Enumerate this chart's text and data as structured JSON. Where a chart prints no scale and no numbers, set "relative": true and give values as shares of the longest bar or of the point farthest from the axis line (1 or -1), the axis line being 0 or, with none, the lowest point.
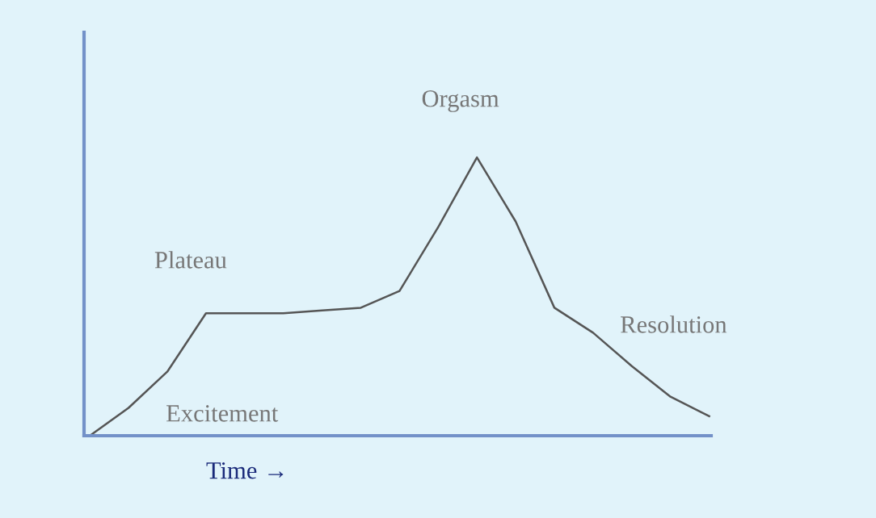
{
  "chart_data": {
    "type": "line",
    "relative": true,
    "xlabel": "Time →",
    "annotations": [
      "Plateau",
      "Orgasm",
      "Resolution",
      "Excitement"
    ],
    "categories": [
      null,
      null,
      null,
      null,
      null,
      null,
      null,
      null,
      null,
      null,
      null,
      null,
      null,
      null,
      null,
      null,
      null
    ],
    "series": [
      {
        "color": "#555555",
        "values": [
          0,
          0.1,
          0.23,
          0.44,
          0.44,
          0.44,
          0.45,
          0.46,
          0.52,
          0.75,
          1.0,
          0.77,
          0.46,
          0.37,
          0.25,
          0.14,
          0.07
        ]
      }
    ],
    "grid": false,
    "legend": false,
    "marker": "none",
    "line_style": "solid"
  }
}
